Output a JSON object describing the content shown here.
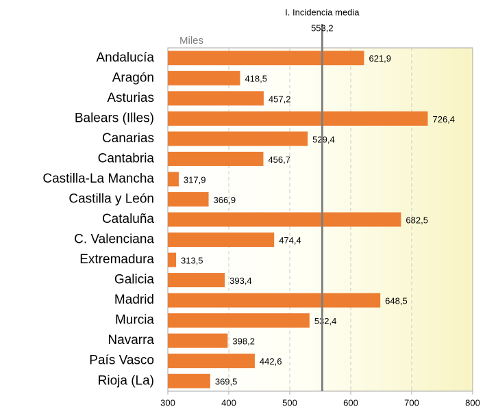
{
  "chart_data": {
    "type": "barh",
    "axis_label": "Miles",
    "categories": [
      "Andalucía",
      "Aragón",
      "Asturias",
      "Balears (Illes)",
      "Canarias",
      "Cantabria",
      "Castilla-La Mancha",
      "Castilla y León",
      "Cataluña",
      "C. Valenciana",
      "Extremadura",
      "Galicia",
      "Madrid",
      "Murcia",
      "Navarra",
      "País Vasco",
      "Rioja (La)"
    ],
    "values": [
      621.9,
      418.5,
      457.2,
      726.4,
      529.4,
      456.7,
      317.9,
      366.9,
      682.5,
      474.4,
      313.5,
      393.4,
      648.5,
      532.4,
      398.2,
      442.6,
      369.5
    ],
    "value_labels": [
      "621,9",
      "418,5",
      "457,2",
      "726,4",
      "529,4",
      "456,7",
      "317,9",
      "366,9",
      "682,5",
      "474,4",
      "313,5",
      "393,4",
      "648,5",
      "532,4",
      "398,2",
      "442,6",
      "369,5"
    ],
    "color": "#ed7d31",
    "xlim": [
      300,
      800
    ],
    "xticks": [
      300,
      400,
      500,
      600,
      700,
      800
    ],
    "grid": true,
    "reference_line": {
      "title": "I. Incidencia media",
      "value": 553.2,
      "label": "553,2",
      "color": "#7f7f7f"
    }
  }
}
